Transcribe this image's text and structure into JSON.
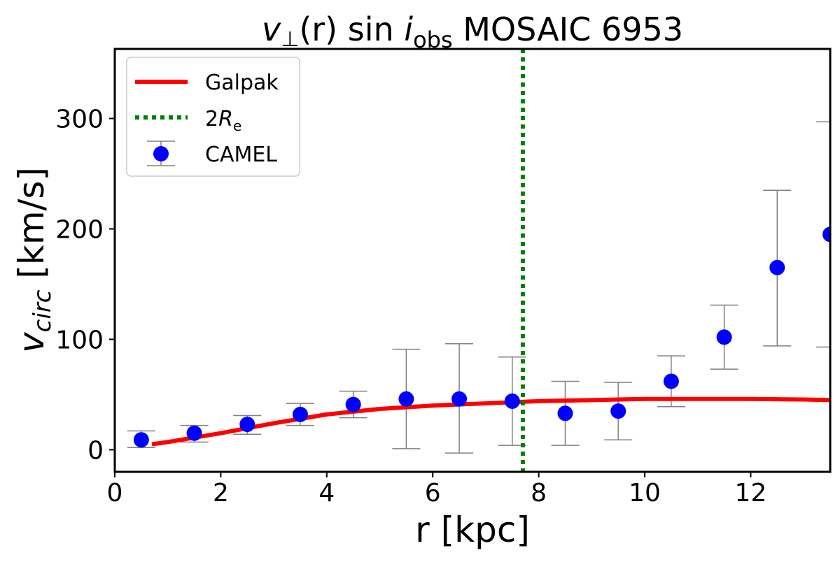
{
  "chart_data": {
    "type": "scatter",
    "title_parts": {
      "v": "v",
      "perp": "⊥",
      "r": "(r) sin ",
      "i": "i",
      "sub": "obs",
      "rest": " MOSAIC 6953"
    },
    "xlabel": "r [kpc]",
    "ylabel_main": "v",
    "ylabel_sub": "circ",
    "ylabel_unit": " [km/s]",
    "xlim": [
      0,
      13.5
    ],
    "ylim": [
      -20,
      363
    ],
    "xticks": [
      0,
      2,
      4,
      6,
      8,
      10,
      12
    ],
    "yticks": [
      0,
      100,
      200,
      300
    ],
    "grid": false,
    "legend_position": "top-left",
    "legend": {
      "galpak": "Galpak",
      "re_prefix": "2",
      "re_main": "R",
      "re_sub": "e",
      "camel": "CAMEL"
    },
    "colors": {
      "galpak": "#ff0000",
      "re_line": "#008000",
      "camel": "#0000ff",
      "errorbar": "#808080"
    },
    "re2_x": 7.7,
    "galpak": {
      "x": [
        0.7,
        1,
        2,
        3,
        4,
        5,
        6,
        7,
        8,
        9,
        10,
        11,
        12,
        13,
        13.5
      ],
      "y": [
        5,
        7,
        15,
        24,
        32,
        37,
        40,
        42,
        44,
        45,
        46,
        46,
        46,
        45.5,
        45
      ]
    },
    "camel": {
      "x": [
        0.5,
        1.5,
        2.5,
        3.5,
        4.5,
        5.5,
        6.5,
        7.5,
        8.5,
        9.5,
        10.5,
        11.5,
        12.5,
        13.5
      ],
      "y": [
        9,
        15,
        23,
        32,
        41,
        46,
        46,
        44,
        33,
        35,
        62,
        102,
        165,
        195
      ],
      "err_low": [
        2,
        7,
        14,
        22,
        29,
        1,
        -3,
        4,
        4,
        9,
        39,
        73,
        94,
        93
      ],
      "err_high": [
        17,
        22,
        31,
        42,
        53,
        91,
        96,
        84,
        62,
        61,
        85,
        131,
        235,
        297
      ]
    }
  }
}
